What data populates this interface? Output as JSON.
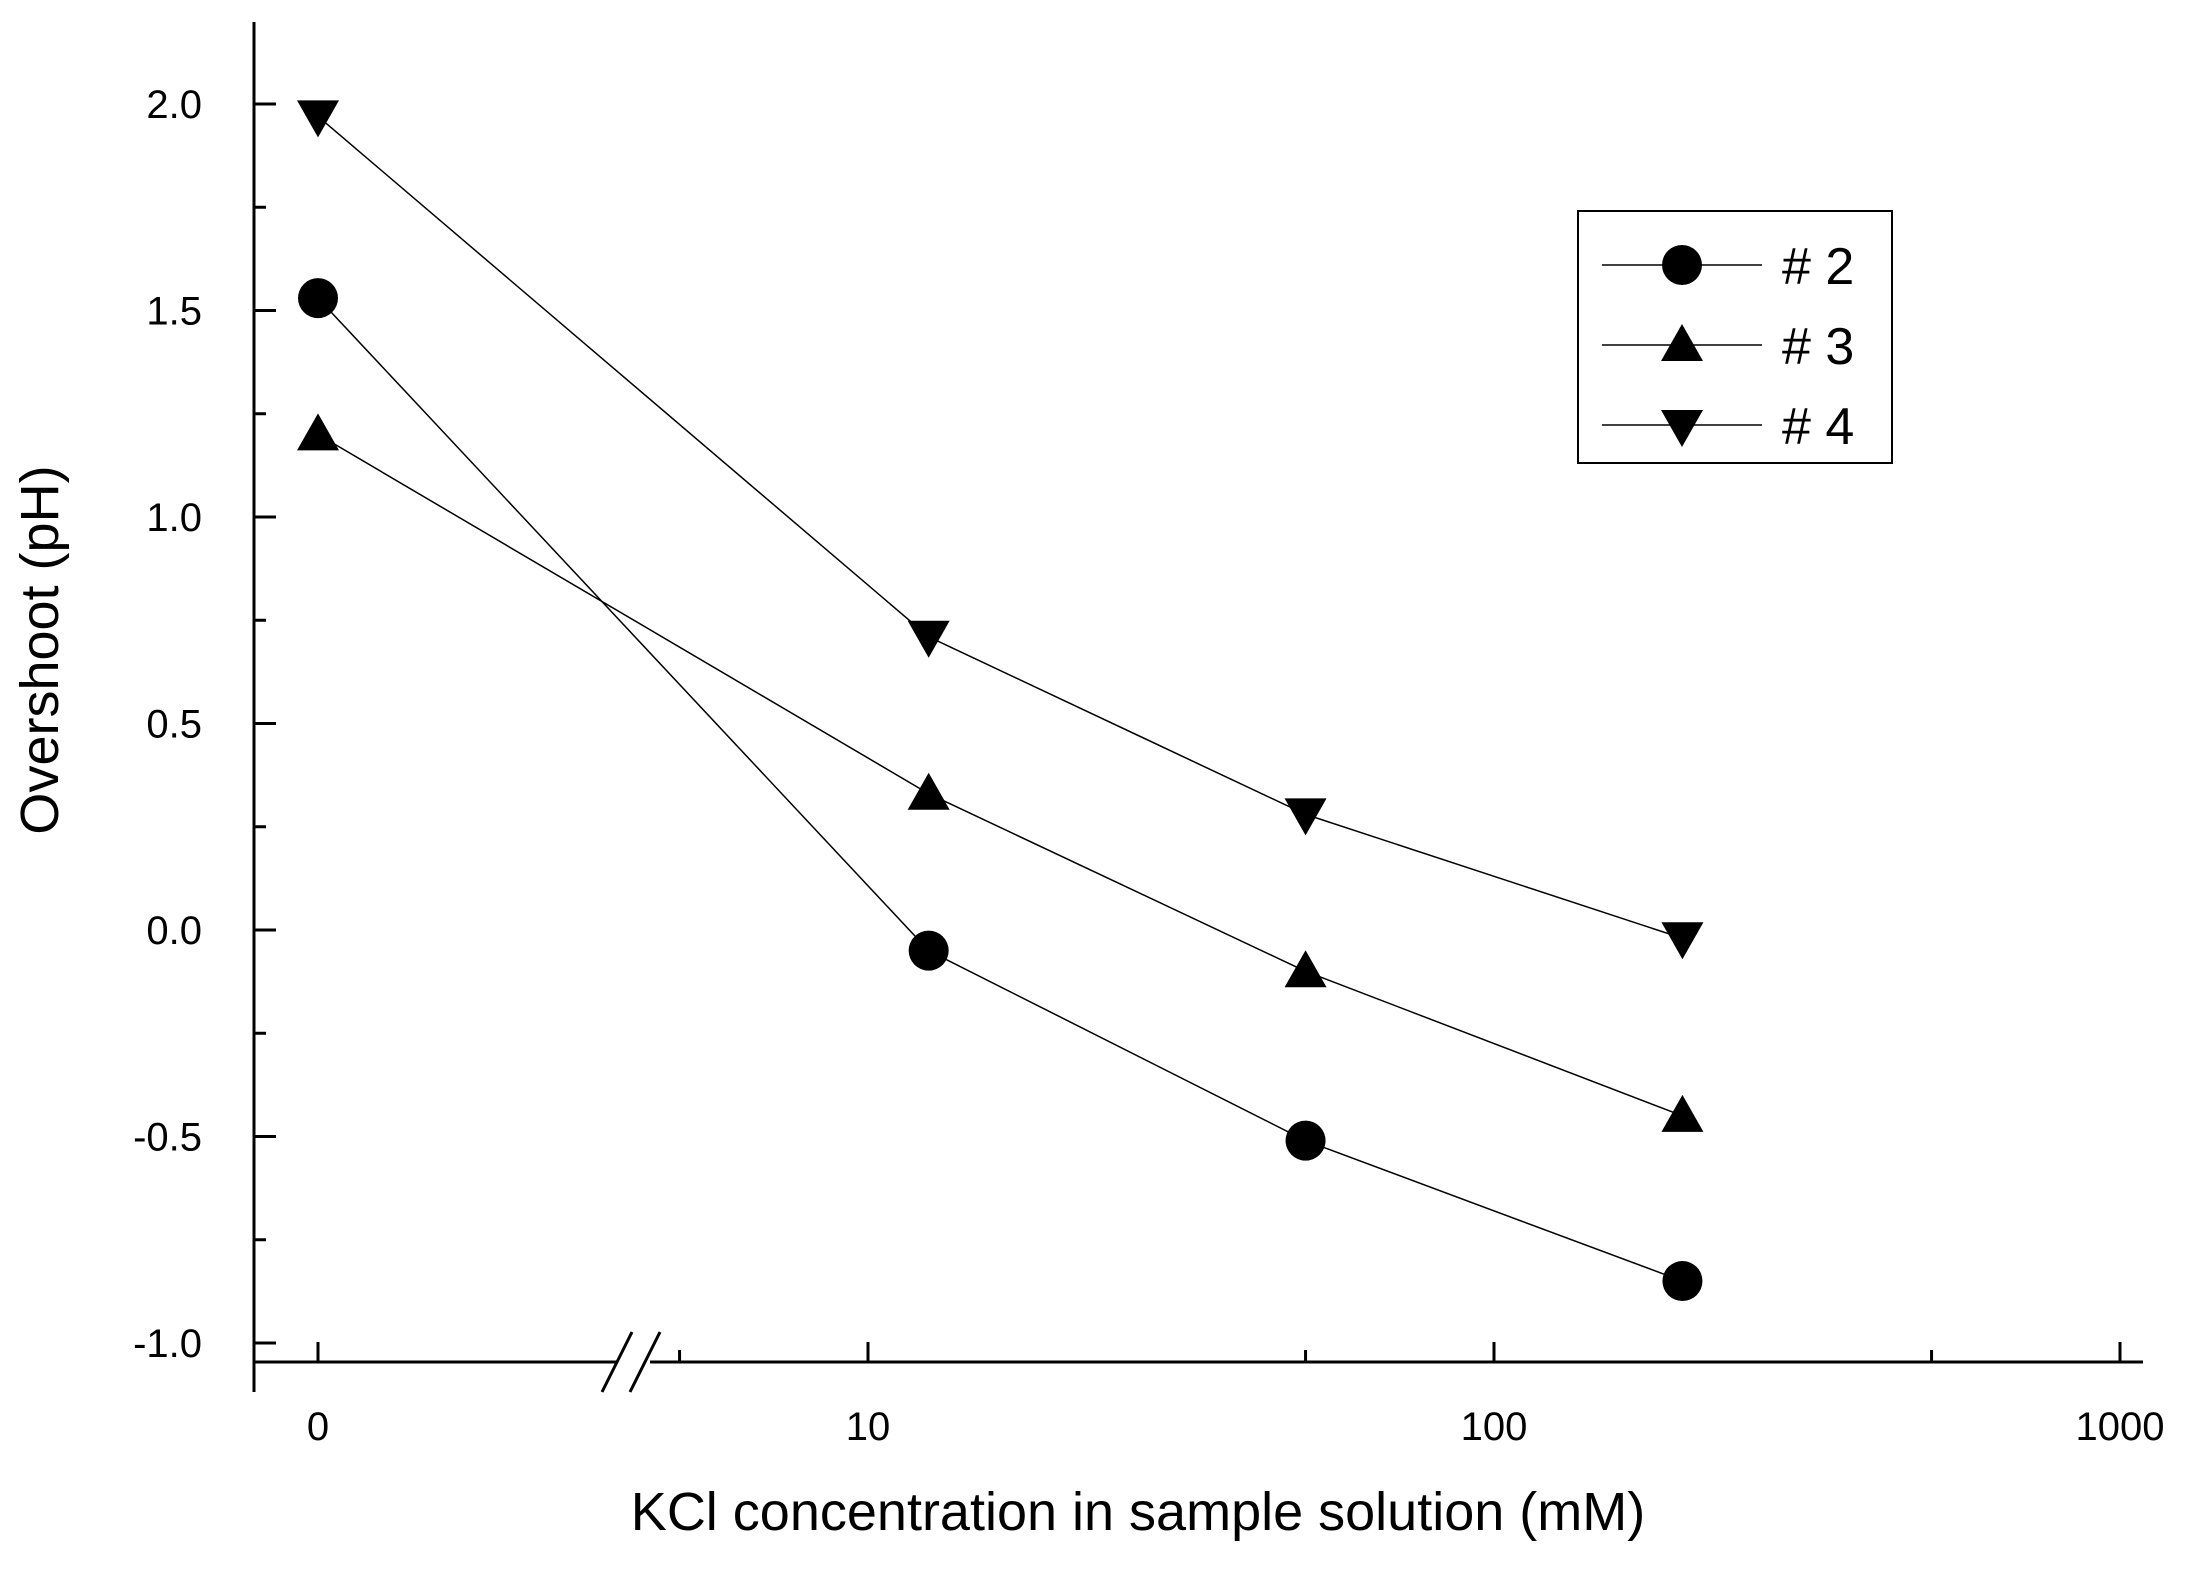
{
  "chart_data": {
    "type": "line",
    "title": "",
    "xlabel": "KCl concentration in sample solution (mM)",
    "ylabel": "Overshoot (pH)",
    "x_scale": "log with axis break after 0",
    "x_tick_labels": [
      "0",
      "10",
      "100",
      "1000"
    ],
    "x_tick_values": [
      0,
      10,
      100,
      1000
    ],
    "xlim": [
      0,
      1000
    ],
    "y_tick_labels": [
      "2.0",
      "1.5",
      "1.0",
      "0.5",
      "0.0",
      "-0.5",
      "-1.0"
    ],
    "y_tick_values": [
      2.0,
      1.5,
      1.0,
      0.5,
      0.0,
      -0.5,
      -1.0
    ],
    "ylim": [
      -1.05,
      2.2
    ],
    "grid": false,
    "legend_position": "top-right",
    "x": [
      0,
      12.5,
      50,
      200
    ],
    "series": [
      {
        "name": "# 2",
        "marker": "circle",
        "values": [
          1.53,
          -0.05,
          -0.51,
          -0.85
        ]
      },
      {
        "name": "# 3",
        "marker": "triangle-up",
        "values": [
          1.2,
          0.33,
          -0.1,
          -0.45
        ]
      },
      {
        "name": "# 4",
        "marker": "triangle-down",
        "values": [
          1.97,
          0.71,
          0.28,
          -0.02
        ]
      }
    ]
  }
}
